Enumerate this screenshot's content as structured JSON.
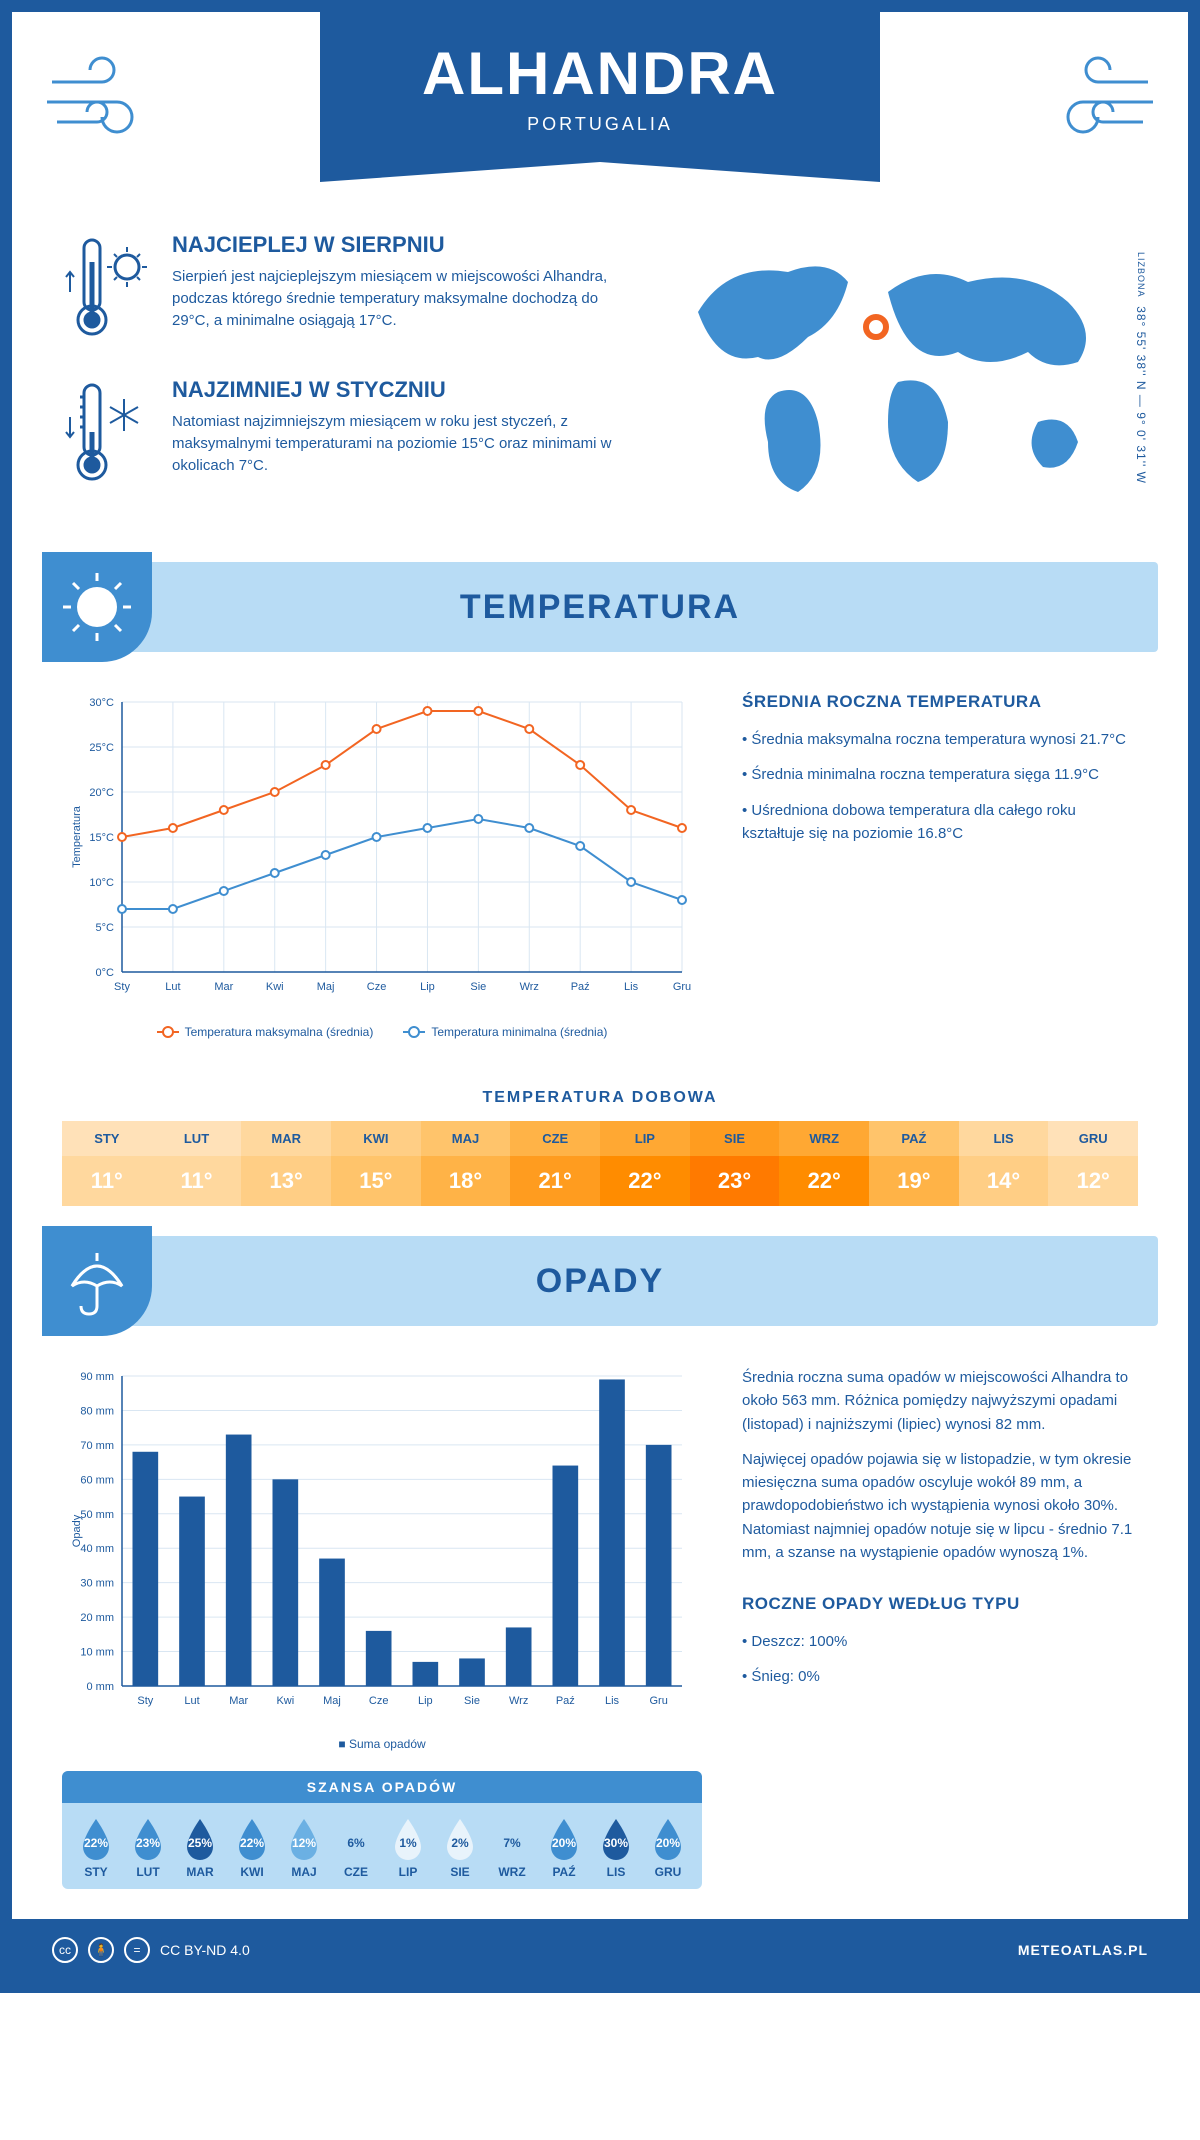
{
  "header": {
    "city": "ALHANDRA",
    "country": "PORTUGALIA"
  },
  "intro": {
    "hot": {
      "title": "NAJCIEPLEJ W SIERPNIU",
      "text": "Sierpień jest najcieplejszym miesiącem w miejscowości Alhandra, podczas którego średnie temperatury maksymalne dochodzą do 29°C, a minimalne osiągają 17°C."
    },
    "cold": {
      "title": "NAJZIMNIEJ W STYCZNIU",
      "text": "Natomiast najzimniejszym miesiącem w roku jest styczeń, z maksymalnymi temperaturami na poziomie 15°C oraz minimami w okolicach 7°C."
    },
    "coords": "38° 55' 38'' N — 9° 0' 31'' W",
    "coords_sub": "LIZBONA"
  },
  "colors": {
    "primary": "#1e5a9e",
    "light": "#b8dcf5",
    "mid": "#3f8ed0",
    "max_line": "#f26522",
    "min_line": "#3f8ed0",
    "grid": "#d9e6f2"
  },
  "temperature": {
    "section_title": "TEMPERATURA",
    "months": [
      "Sty",
      "Lut",
      "Mar",
      "Kwi",
      "Maj",
      "Cze",
      "Lip",
      "Sie",
      "Wrz",
      "Paź",
      "Lis",
      "Gru"
    ],
    "max": [
      15,
      16,
      18,
      20,
      23,
      27,
      29,
      29,
      27,
      23,
      18,
      16
    ],
    "min": [
      7,
      7,
      9,
      11,
      13,
      15,
      16,
      17,
      16,
      14,
      10,
      8
    ],
    "y_ticks": [
      0,
      5,
      10,
      15,
      20,
      25,
      30
    ],
    "y_label": "Temperatura",
    "ylim": [
      0,
      30
    ],
    "legend_max": "Temperatura maksymalna (średnia)",
    "legend_min": "Temperatura minimalna (średnia)",
    "avg_title": "ŚREDNIA ROCZNA TEMPERATURA",
    "avg_bullets": [
      "Średnia maksymalna roczna temperatura wynosi 21.7°C",
      "Średnia minimalna roczna temperatura sięga 11.9°C",
      "Uśredniona dobowa temperatura dla całego roku kształtuje się na poziomie 16.8°C"
    ],
    "daily_title": "TEMPERATURA DOBOWA",
    "daily_months": [
      "STY",
      "LUT",
      "MAR",
      "KWI",
      "MAJ",
      "CZE",
      "LIP",
      "SIE",
      "WRZ",
      "PAŹ",
      "LIS",
      "GRU"
    ],
    "daily_values": [
      "11°",
      "11°",
      "13°",
      "15°",
      "18°",
      "21°",
      "22°",
      "23°",
      "22°",
      "19°",
      "14°",
      "12°"
    ],
    "daily_header_colors": [
      "#ffe1b8",
      "#ffe1b8",
      "#ffd89e",
      "#ffce85",
      "#ffc46b",
      "#ffb347",
      "#ffa833",
      "#ff9c1f",
      "#ffa833",
      "#ffc46b",
      "#ffd89e",
      "#ffe1b8"
    ],
    "daily_value_colors": [
      "#ffd89e",
      "#ffd89e",
      "#ffce85",
      "#ffc46b",
      "#ffb347",
      "#ff9c1f",
      "#ff8c00",
      "#ff7a00",
      "#ff8c00",
      "#ffb347",
      "#ffce85",
      "#ffd89e"
    ]
  },
  "precip": {
    "section_title": "OPADY",
    "months": [
      "Sty",
      "Lut",
      "Mar",
      "Kwi",
      "Maj",
      "Cze",
      "Lip",
      "Sie",
      "Wrz",
      "Paź",
      "Lis",
      "Gru"
    ],
    "values": [
      68,
      55,
      73,
      60,
      37,
      16,
      7,
      8,
      17,
      64,
      89,
      70
    ],
    "y_ticks": [
      0,
      10,
      20,
      30,
      40,
      50,
      60,
      70,
      80,
      90
    ],
    "ylim": [
      0,
      90
    ],
    "y_label": "Opady",
    "legend": "Suma opadów",
    "para1": "Średnia roczna suma opadów w miejscowości Alhandra to około 563 mm. Różnica pomiędzy najwyższymi opadami (listopad) i najniższymi (lipiec) wynosi 82 mm.",
    "para2": "Najwięcej opadów pojawia się w listopadzie, w tym okresie miesięczna suma opadów oscyluje wokół 89 mm, a prawdopodobieństwo ich wystąpienia wynosi około 30%. Natomiast najmniej opadów notuje się w lipcu - średnio 7.1 mm, a szanse na wystąpienie opadów wynoszą 1%.",
    "chance_title": "SZANSA OPADÓW",
    "chance_months": [
      "STY",
      "LUT",
      "MAR",
      "KWI",
      "MAJ",
      "CZE",
      "LIP",
      "SIE",
      "WRZ",
      "PAŹ",
      "LIS",
      "GRU"
    ],
    "chance_values": [
      "22%",
      "23%",
      "25%",
      "22%",
      "12%",
      "6%",
      "1%",
      "2%",
      "7%",
      "20%",
      "30%",
      "20%"
    ],
    "chance_colors": [
      "#3f8ed0",
      "#3f8ed0",
      "#1e5a9e",
      "#3f8ed0",
      "#6bb0e3",
      "#b8dcf5",
      "#e8f3fb",
      "#e8f3fb",
      "#b8dcf5",
      "#3f8ed0",
      "#1e5a9e",
      "#3f8ed0"
    ],
    "chance_text_colors": [
      "#fff",
      "#fff",
      "#fff",
      "#fff",
      "#fff",
      "#1e5a9e",
      "#1e5a9e",
      "#1e5a9e",
      "#1e5a9e",
      "#fff",
      "#fff",
      "#fff"
    ],
    "type_title": "ROCZNE OPADY WEDŁUG TYPU",
    "type_bullets": [
      "Deszcz: 100%",
      "Śnieg: 0%"
    ]
  },
  "footer": {
    "license": "CC BY-ND 4.0",
    "site": "METEOATLAS.PL"
  }
}
